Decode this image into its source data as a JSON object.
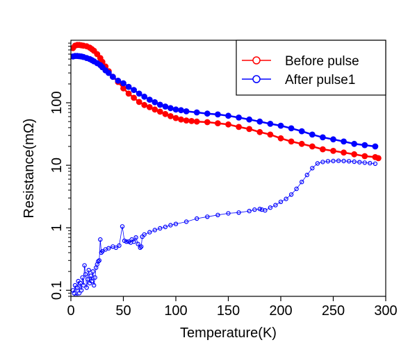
{
  "chart_data": {
    "type": "scatter",
    "title": "",
    "xlabel": "Temperature(K)",
    "ylabel": "Resistance(mΩ)",
    "xlim": [
      0,
      300
    ],
    "ylim": [
      0.08,
      1000
    ],
    "yscale": "log",
    "xticks": [
      0,
      50,
      100,
      150,
      200,
      250,
      300
    ],
    "yticks": [
      {
        "value": 0.1,
        "label": "0.1"
      },
      {
        "value": 1,
        "label": "1"
      },
      {
        "value": 10,
        "label": "10"
      },
      {
        "value": 100,
        "label": "100"
      }
    ],
    "grid": false,
    "legend_position": "top-right",
    "series": [
      {
        "name": "Before pulse",
        "color": "#ff0000",
        "marker": "open-circle",
        "x": [
          2,
          4,
          6,
          8,
          10,
          12,
          15,
          18,
          20,
          22,
          25,
          28,
          30,
          33,
          36,
          40,
          45,
          50,
          55,
          60,
          65,
          70,
          75,
          80,
          85,
          90,
          95,
          100,
          105,
          110,
          115,
          120,
          130,
          140,
          150,
          160,
          170,
          180,
          190,
          200,
          210,
          220,
          230,
          240,
          250,
          260,
          270,
          280,
          290,
          293
        ],
        "y": [
          750,
          820,
          840,
          840,
          830,
          820,
          800,
          760,
          720,
          680,
          600,
          520,
          450,
          380,
          320,
          260,
          215,
          170,
          140,
          120,
          103,
          92,
          85,
          78,
          72,
          66,
          61,
          57,
          54,
          52,
          51,
          50,
          49,
          47,
          45,
          41,
          38,
          34,
          31,
          27,
          24,
          22,
          20,
          18,
          17,
          16,
          15,
          14,
          13.5,
          13
        ]
      },
      {
        "name": "After pulse1",
        "color": "#0000ff",
        "marker": "open-circle",
        "x": [
          2,
          4,
          6,
          8,
          10,
          12,
          15,
          18,
          20,
          22,
          25,
          28,
          30,
          33,
          36,
          40,
          45,
          50,
          55,
          60,
          65,
          70,
          75,
          80,
          85,
          90,
          95,
          100,
          105,
          110,
          120,
          130,
          140,
          150,
          160,
          170,
          180,
          190,
          200,
          210,
          220,
          230,
          240,
          250,
          260,
          270,
          280,
          290
        ],
        "y": [
          550,
          560,
          560,
          555,
          550,
          540,
          520,
          500,
          480,
          460,
          430,
          400,
          370,
          330,
          300,
          260,
          225,
          205,
          180,
          160,
          140,
          125,
          112,
          102,
          93,
          87,
          82,
          78,
          76,
          73,
          70,
          67,
          65,
          62,
          58,
          54,
          50,
          46,
          43,
          39,
          35,
          31,
          28,
          26,
          24,
          22,
          21,
          20
        ]
      },
      {
        "name": "",
        "color": "#0000ff",
        "marker": "open-circle",
        "x": [
          2,
          3,
          4,
          5,
          6,
          7,
          8,
          9,
          10,
          11,
          12,
          13,
          14,
          15,
          16,
          17,
          18,
          19,
          20,
          21,
          22,
          23,
          24,
          25,
          26,
          27,
          28,
          29,
          30,
          33,
          36,
          40,
          43,
          46,
          49,
          51,
          53,
          55,
          57,
          58,
          60,
          62,
          64,
          66,
          67,
          68,
          70,
          75,
          80,
          85,
          90,
          95,
          100,
          110,
          120,
          130,
          140,
          150,
          160,
          170,
          175,
          180,
          182,
          185,
          190,
          195,
          200,
          205,
          210,
          215,
          220,
          225,
          230,
          235,
          240,
          245,
          250,
          255,
          260,
          265,
          270,
          275,
          280,
          285,
          290
        ],
        "y": [
          0.1,
          0.09,
          0.12,
          0.08,
          0.11,
          0.14,
          0.09,
          0.13,
          0.1,
          0.16,
          0.12,
          0.25,
          0.18,
          0.11,
          0.15,
          0.21,
          0.13,
          0.17,
          0.14,
          0.2,
          0.12,
          0.16,
          0.23,
          0.26,
          0.29,
          0.3,
          0.65,
          0.4,
          0.42,
          0.45,
          0.47,
          0.5,
          0.48,
          0.52,
          1.05,
          0.62,
          0.6,
          0.6,
          0.58,
          0.65,
          0.6,
          0.7,
          0.55,
          0.48,
          0.5,
          0.72,
          0.78,
          0.85,
          0.92,
          0.98,
          1.03,
          1.1,
          1.15,
          1.25,
          1.4,
          1.5,
          1.6,
          1.7,
          1.75,
          1.85,
          1.95,
          2.0,
          1.95,
          1.9,
          2.1,
          2.3,
          2.6,
          2.9,
          3.4,
          4.2,
          5.4,
          7.0,
          9.0,
          10.7,
          11.3,
          11.6,
          11.7,
          11.8,
          11.7,
          11.6,
          11.4,
          11.2,
          11.0,
          10.8,
          10.6
        ]
      }
    ]
  }
}
